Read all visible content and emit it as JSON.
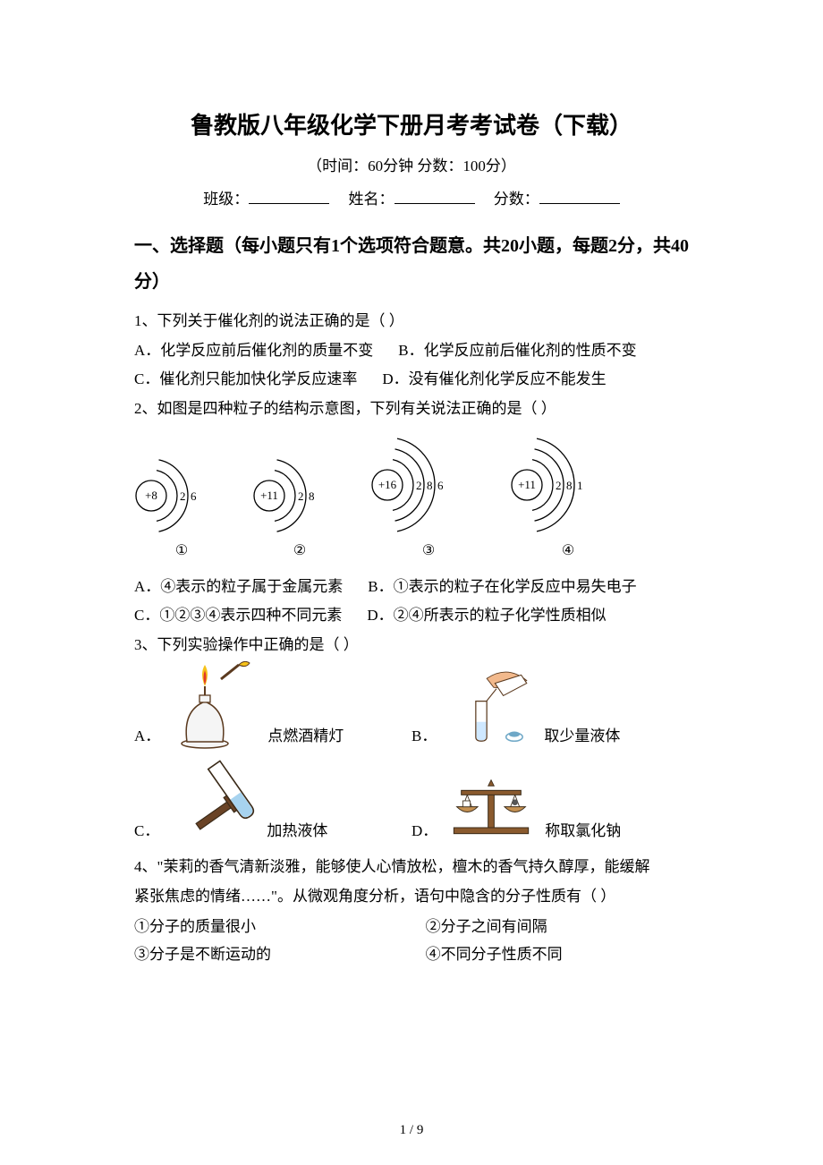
{
  "title": "鲁教版八年级化学下册月考考试卷（下载）",
  "subtitle_prefix": "（时间：",
  "duration": "60分钟",
  "subtitle_mid": "   分数：",
  "total_score": "100分",
  "subtitle_suffix": "）",
  "fill": {
    "class_label": "班级：",
    "name_label": "姓名：",
    "score_label": "分数："
  },
  "section1_heading": "一、选择题（每小题只有1个选项符合题意。共20小题，每题2分，共40分）",
  "q1": {
    "stem": "1、下列关于催化剂的说法正确的是（    ）",
    "opts": {
      "A": "A．化学反应前后催化剂的质量不变",
      "B": "B．化学反应前后催化剂的性质不变",
      "C": "C．催化剂只能加快化学反应速率",
      "D": "D．没有催化剂化学反应不能发生"
    }
  },
  "q2": {
    "stem": "2、如图是四种粒子的结构示意图，下列有关说法正确的是（    ）",
    "atoms": [
      {
        "nucleus": "+8",
        "shells": [
          "2",
          "6"
        ],
        "label": "①"
      },
      {
        "nucleus": "+11",
        "shells": [
          "2",
          "8"
        ],
        "label": "②"
      },
      {
        "nucleus": "+16",
        "shells": [
          "2",
          "8",
          "6"
        ],
        "label": "③"
      },
      {
        "nucleus": "+11",
        "shells": [
          "2",
          "8",
          "1"
        ],
        "label": "④"
      }
    ],
    "opts": {
      "A": "A．④表示的粒子属于金属元素",
      "B": "B．①表示的粒子在化学反应中易失电子",
      "C": "C．①②③④表示四种不同元素",
      "D": "D．②④所表示的粒子化学性质相似"
    },
    "styling": {
      "nucleus_fill": "#ffffff",
      "nucleus_stroke": "#000000",
      "shell_stroke": "#000000",
      "stroke_width": 1.3,
      "font_size": 13
    }
  },
  "q3": {
    "stem": "3、下列实验操作中正确的是（    ）",
    "opts": [
      {
        "letter": "A．",
        "caption": "点燃酒精灯",
        "icon": "alcohol-lamp",
        "colors": {
          "body": "#f5f5f5",
          "flame_outer": "#f6c21a",
          "flame_inner": "#e2372b",
          "outline": "#5b3a1f"
        }
      },
      {
        "letter": "B．",
        "caption": "取少量液体",
        "icon": "pour-liquid",
        "colors": {
          "hand": "#f2b98c",
          "bottle": "#ffffff",
          "liquid": "#cfe8ff",
          "stopper": "#6fa8c7",
          "outline": "#5b3a1f"
        }
      },
      {
        "letter": "C．",
        "caption": "加热液体",
        "icon": "heat-tube",
        "colors": {
          "holder": "#6a4326",
          "tube": "#ffffff",
          "liquid": "#a7d3ef",
          "outline": "#3a2a18"
        }
      },
      {
        "letter": "D．",
        "caption": "称取氯化钠",
        "icon": "balance-scale",
        "colors": {
          "base": "#8a5a2e",
          "beam": "#8a5a2e",
          "pan": "#c59152",
          "outline": "#3a2a18"
        }
      }
    ],
    "img_box": {
      "w": 100,
      "h": 100
    }
  },
  "q4": {
    "stem1": "4、\"茉莉的香气清新淡雅，能够使人心情放松，檀木的香气持久醇厚，能缓解",
    "stem2": "紧张焦虑的情绪……\"。从微观角度分析，语句中隐含的分子性质有（    ）",
    "opts": {
      "i": "①分子的质量很小",
      "ii": "②分子之间有间隔",
      "iii": "③分子是不断运动的",
      "iv": "④不同分子性质不同"
    }
  },
  "footer": "1 / 9"
}
